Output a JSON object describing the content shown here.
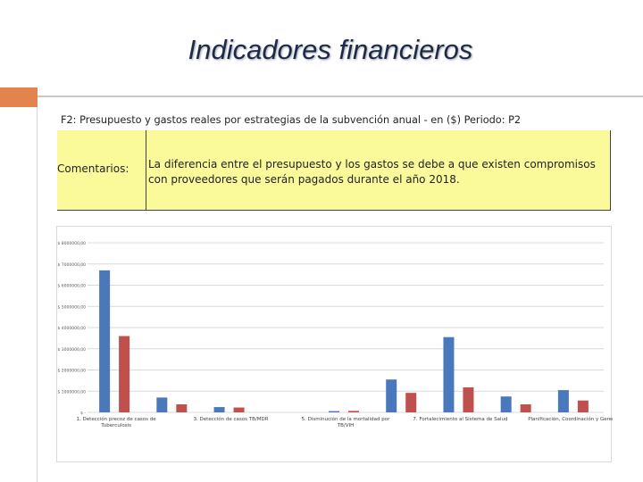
{
  "slide": {
    "title": "Indicadores financieros",
    "heading": "F2: Presupuesto y gastos reales por estrategias de la subvención anual - en ($) Periodo: P2"
  },
  "comment": {
    "label": "Comentarios:",
    "text": "La diferencia entre el presupuesto y los gastos se debe a que existen compromisos con proveedores que serán pagados durante el año 2018."
  },
  "colors": {
    "presupuesto": "#4a78bd",
    "gastos": "#c0504d",
    "accent": "#e2844e",
    "comment_bg": "#fbfa9a"
  },
  "chart_data": {
    "type": "bar",
    "title": "",
    "xlabel": "",
    "ylabel": "",
    "ylim": [
      0,
      8000000
    ],
    "y_ticks": [
      {
        "value": 0,
        "label": "$ -"
      },
      {
        "value": 1000000,
        "label": "$ 1000000,00"
      },
      {
        "value": 2000000,
        "label": "$ 2000000,00"
      },
      {
        "value": 3000000,
        "label": "$ 3000000,00"
      },
      {
        "value": 4000000,
        "label": "$ 4000000,00"
      },
      {
        "value": 5000000,
        "label": "$ 5000000,00"
      },
      {
        "value": 6000000,
        "label": "$ 6000000,00"
      },
      {
        "value": 7000000,
        "label": "$ 7000000,00"
      },
      {
        "value": 8000000,
        "label": "$ 8000000,00"
      }
    ],
    "categories": [
      "1. Detección precoz de casos de Tuberculosis",
      "",
      "3. Detección de casos TB/MDR",
      "",
      "5. Disminución de la mortalidad por TB/VIH",
      "",
      "7. Fortalecimiento al Sistema de Salud",
      "",
      "Planificación, Coordinación y Gerencia"
    ],
    "series": [
      {
        "values": [
          6700000,
          700000,
          250000,
          0,
          60000,
          1550000,
          3550000,
          750000,
          1050000
        ]
      },
      {
        "values": [
          3600000,
          380000,
          230000,
          0,
          70000,
          920000,
          1180000,
          380000,
          560000
        ]
      }
    ],
    "grid": true,
    "legend": "none"
  }
}
